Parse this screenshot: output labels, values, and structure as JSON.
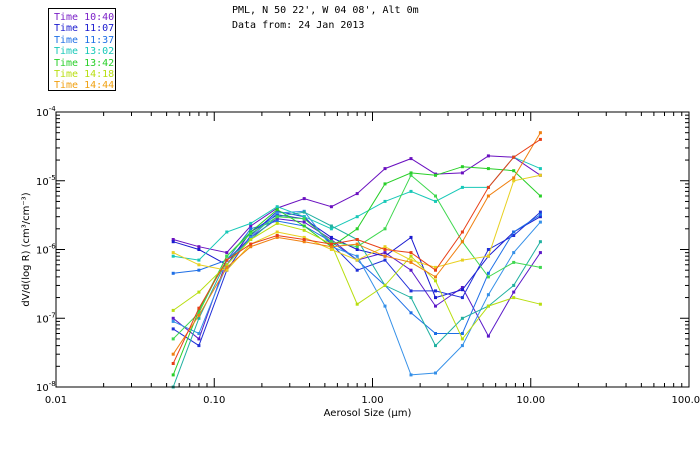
{
  "header": {
    "line1": "PML, N 50 22', W 04 08', Alt 0m",
    "line2": "Data from: 24 Jan 2013"
  },
  "legend": [
    {
      "label": "Time 10:40",
      "color": "#7a1fc7"
    },
    {
      "label": "Time 11:07",
      "color": "#1a1acf"
    },
    {
      "label": "Time 11:37",
      "color": "#1e6fe6"
    },
    {
      "label": "Time 13:02",
      "color": "#18c8b8"
    },
    {
      "label": "Time 13:42",
      "color": "#28cf28"
    },
    {
      "label": "Time 14:18",
      "color": "#b8de10"
    },
    {
      "label": "Time 14:44",
      "color": "#f0a010"
    }
  ],
  "chart_data": {
    "type": "line",
    "xscale": "log",
    "yscale": "log",
    "xlim": [
      0.01,
      100
    ],
    "ylim": [
      1e-08,
      0.0001
    ],
    "xlabel": "Aerosol Size (μm)",
    "ylabel": "dV/d(log R) (cm³/cm⁻³)",
    "x_ticks": [
      {
        "value": 0.01,
        "label": "0.01"
      },
      {
        "value": 0.1,
        "label": "0.10"
      },
      {
        "value": 1,
        "label": "1.00"
      },
      {
        "value": 10,
        "label": "10.00"
      },
      {
        "value": 100,
        "label": "100.00"
      }
    ],
    "y_ticks": [
      {
        "value": 0.0001,
        "mant": "10",
        "exp": "-4"
      },
      {
        "value": 1e-05,
        "mant": "10",
        "exp": "-5"
      },
      {
        "value": 1e-06,
        "mant": "10",
        "exp": "-6"
      },
      {
        "value": 1e-07,
        "mant": "10",
        "exp": "-7"
      },
      {
        "value": 1e-08,
        "mant": "10",
        "exp": "-8"
      }
    ],
    "x": [
      0.055,
      0.08,
      0.12,
      0.17,
      0.25,
      0.37,
      0.55,
      0.8,
      1.2,
      1.75,
      2.5,
      3.7,
      5.4,
      7.8,
      11.5
    ],
    "series": [
      {
        "name": "10:40 a",
        "color": "#6a10c0",
        "values": [
          1.4e-06,
          1.1e-06,
          9e-07,
          2.2e-06,
          4e-06,
          5.5e-06,
          4.2e-06,
          6.5e-06,
          1.5e-05,
          2.1e-05,
          1.25e-05,
          1.3e-05,
          2.3e-05,
          2.2e-05,
          1.2e-05
        ]
      },
      {
        "name": "10:40 b",
        "color": "#5a18c8",
        "values": [
          1e-07,
          5e-08,
          7e-07,
          1.5e-06,
          2.8e-06,
          2.5e-06,
          1.4e-06,
          7e-07,
          9e-07,
          5e-07,
          1.5e-07,
          2.8e-07,
          5.5e-08,
          2.4e-07,
          9e-07
        ]
      },
      {
        "name": "11:07 a",
        "color": "#1a1acf",
        "values": [
          1.3e-06,
          1e-06,
          6e-07,
          1.8e-06,
          3.2e-06,
          2.8e-06,
          1.5e-06,
          1e-06,
          8e-07,
          1.5e-06,
          2e-07,
          2.6e-07,
          8e-07,
          1.8e-06,
          3e-06
        ]
      },
      {
        "name": "11:07 b",
        "color": "#2030d8",
        "values": [
          7e-08,
          4e-08,
          5e-07,
          1.6e-06,
          3.6e-06,
          3e-06,
          1.2e-06,
          5e-07,
          7e-07,
          2.5e-07,
          2.5e-07,
          2e-07,
          1e-06,
          1.6e-06,
          3.5e-06
        ]
      },
      {
        "name": "11:37 a",
        "color": "#1e6fe6",
        "values": [
          4.5e-07,
          5e-07,
          7e-07,
          2e-06,
          2.6e-06,
          2.2e-06,
          1.3e-06,
          7e-07,
          3e-07,
          1.2e-07,
          6e-08,
          6e-08,
          4.5e-07,
          1.8e-06,
          3.2e-06
        ]
      },
      {
        "name": "11:37 b",
        "color": "#3590e8",
        "values": [
          9e-08,
          6e-08,
          6e-07,
          1.5e-06,
          3.4e-06,
          3.6e-06,
          1.1e-06,
          8e-07,
          1.5e-07,
          1.5e-08,
          1.6e-08,
          4e-08,
          2.2e-07,
          9e-07,
          2.5e-06
        ]
      },
      {
        "name": "13:02 a",
        "color": "#18c8b8",
        "values": [
          8e-07,
          7e-07,
          1.8e-06,
          2.4e-06,
          4.2e-06,
          3e-06,
          2e-06,
          3e-06,
          5e-06,
          7e-06,
          5e-06,
          8e-06,
          8e-06,
          2.2e-05,
          1.5e-05
        ]
      },
      {
        "name": "13:02 b",
        "color": "#20b0a0",
        "values": [
          1e-08,
          1e-07,
          7e-07,
          1.4e-06,
          3e-06,
          3.5e-06,
          2.2e-06,
          1.4e-06,
          3e-07,
          2e-07,
          4e-08,
          1e-07,
          1.5e-07,
          3e-07,
          1.3e-06
        ]
      },
      {
        "name": "13:42 a",
        "color": "#28cf28",
        "values": [
          1.5e-08,
          1.3e-07,
          8e-07,
          1.8e-06,
          3.8e-06,
          2.2e-06,
          1.1e-06,
          2e-06,
          9e-06,
          1.3e-05,
          1.2e-05,
          1.6e-05,
          1.5e-05,
          1.4e-05,
          6e-06
        ]
      },
      {
        "name": "13:42 b",
        "color": "#40d850",
        "values": [
          5e-08,
          1.2e-07,
          8e-07,
          1.7e-06,
          3e-06,
          2.8e-06,
          1.3e-06,
          1.1e-06,
          2e-06,
          1.2e-05,
          6e-06,
          1.3e-06,
          4e-07,
          6.5e-07,
          5.5e-07
        ]
      },
      {
        "name": "14:18 a",
        "color": "#b8de10",
        "values": [
          1.3e-07,
          2.4e-07,
          6e-07,
          1.4e-06,
          2.4e-06,
          1.9e-06,
          1.2e-06,
          1.6e-07,
          3e-07,
          8e-07,
          3.5e-07,
          5e-08,
          1.5e-07,
          2e-07,
          1.6e-07
        ]
      },
      {
        "name": "14:18 b",
        "color": "#e8d020",
        "values": [
          9e-07,
          6e-07,
          5e-07,
          1.2e-06,
          1.8e-06,
          1.5e-06,
          1e-06,
          7e-07,
          1.1e-06,
          7e-07,
          5.5e-07,
          7e-07,
          8e-07,
          1e-05,
          1.2e-05
        ]
      },
      {
        "name": "14:44 a",
        "color": "#f08010",
        "values": [
          3e-08,
          1.1e-07,
          5.5e-07,
          1.1e-06,
          1.5e-06,
          1.3e-06,
          1.1e-06,
          1.2e-06,
          8e-07,
          6.5e-07,
          4e-07,
          1.3e-06,
          6e-06,
          1.1e-05,
          5e-05
        ]
      },
      {
        "name": "14:44 b",
        "color": "#e84018",
        "values": [
          2.2e-08,
          1.4e-07,
          7e-07,
          1.2e-06,
          1.6e-06,
          1.4e-06,
          1.2e-06,
          1.4e-06,
          1e-06,
          9e-07,
          5e-07,
          1.8e-06,
          8e-06,
          2.2e-05,
          4e-05
        ]
      }
    ]
  }
}
